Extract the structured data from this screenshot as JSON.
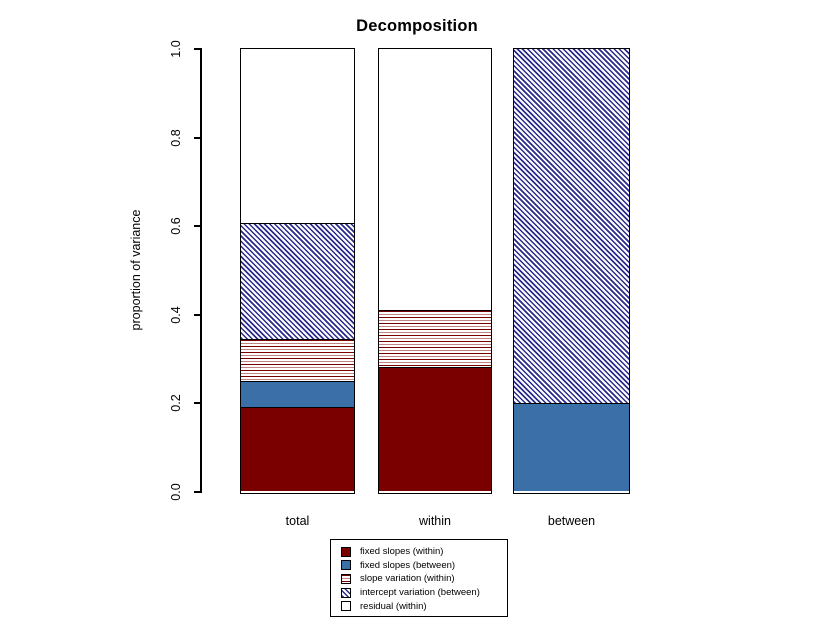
{
  "palette": {
    "darkred": "#7a0000",
    "blue": "#3a6fa8",
    "navy": "#2b2b8e",
    "stripe_pink": "#c08383",
    "white": "#ffffff",
    "axis": "#000000"
  },
  "chart_data": {
    "type": "bar",
    "stacked": true,
    "title": "Decomposition",
    "xlabel": "",
    "ylabel": "proportion of variance",
    "ylim": [
      0.0,
      1.0
    ],
    "yticks": [
      0.0,
      0.2,
      0.4,
      0.6,
      0.8,
      1.0
    ],
    "ytick_labels": [
      "0.0",
      "0.2",
      "0.4",
      "0.6",
      "0.8",
      "1.0"
    ],
    "categories": [
      "total",
      "within",
      "between"
    ],
    "series": [
      {
        "name": "fixed slopes (within)",
        "style": "solid-darkred",
        "values": [
          0.19,
          0.28,
          0.0
        ]
      },
      {
        "name": "fixed slopes (between)",
        "style": "solid-blue",
        "values": [
          0.06,
          0.0,
          0.2
        ]
      },
      {
        "name": "slope variation (within)",
        "style": "hstripe-red",
        "values": [
          0.095,
          0.13,
          0.0
        ]
      },
      {
        "name": "intercept variation (between)",
        "style": "diag-navy",
        "values": [
          0.26,
          0.0,
          0.8
        ]
      },
      {
        "name": "residual (within)",
        "style": "solid-white",
        "values": [
          0.395,
          0.59,
          0.0
        ]
      }
    ],
    "grid": false,
    "legend_position": "bottom-center"
  }
}
